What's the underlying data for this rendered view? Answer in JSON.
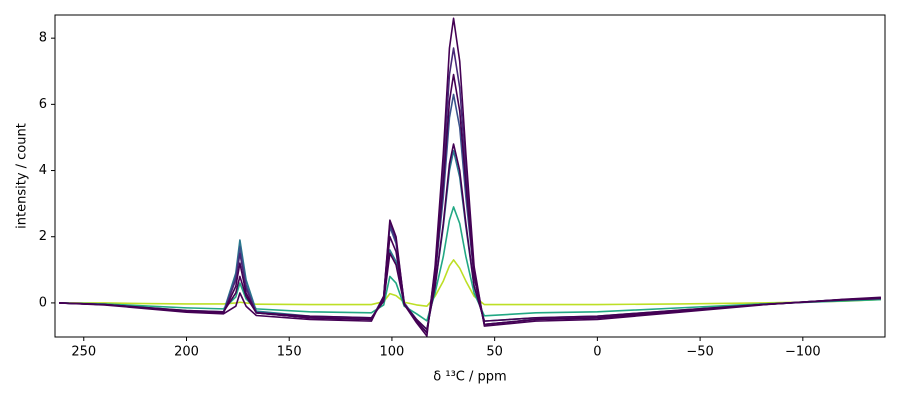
{
  "chart_data": {
    "type": "line",
    "xlabel": "δ ¹³C / ppm",
    "ylabel": "intensity / count",
    "x": [
      262,
      240,
      220,
      200,
      182,
      176,
      174,
      171,
      166,
      140,
      110,
      104,
      101,
      98,
      94,
      88,
      83,
      79,
      75,
      72,
      70,
      67,
      64,
      60,
      55,
      30,
      0,
      -40,
      -80,
      -120,
      -138
    ],
    "series": [
      {
        "color": "#bddf26",
        "values": [
          0,
          0,
          -0.02,
          -0.03,
          -0.03,
          0,
          0.02,
          0,
          -0.04,
          -0.05,
          -0.05,
          0.04,
          0.28,
          0.22,
          0.02,
          -0.06,
          -0.1,
          0.2,
          0.66,
          1.12,
          1.3,
          1.05,
          0.66,
          0.2,
          -0.05,
          -0.05,
          -0.05,
          -0.03,
          0,
          0.05,
          0.1
        ]
      },
      {
        "color": "#22a884",
        "values": [
          0,
          -0.03,
          -0.09,
          -0.15,
          -0.18,
          0.18,
          0.6,
          0.12,
          -0.18,
          -0.27,
          -0.3,
          -0.06,
          0.8,
          0.6,
          -0.1,
          -0.33,
          -0.54,
          0.3,
          1.4,
          2.5,
          2.9,
          2.4,
          1.4,
          0.3,
          -0.39,
          -0.3,
          -0.27,
          -0.15,
          -0.03,
          0.06,
          0.1
        ]
      },
      {
        "color": "#2a788e",
        "values": [
          0,
          -0.05,
          -0.14,
          -0.23,
          -0.27,
          0.9,
          1.9,
          0.7,
          -0.25,
          -0.4,
          -0.45,
          0.1,
          1.6,
          1.25,
          0,
          -0.5,
          -0.8,
          0.5,
          2.3,
          4.0,
          4.6,
          3.8,
          2.3,
          0.5,
          -0.55,
          -0.45,
          -0.4,
          -0.22,
          -0.05,
          0.09,
          0.13
        ]
      },
      {
        "color": "#3b528b",
        "values": [
          0,
          -0.05,
          -0.15,
          -0.25,
          -0.3,
          0.8,
          1.7,
          0.55,
          -0.3,
          -0.45,
          -0.5,
          0.2,
          2.3,
          1.8,
          0,
          -0.55,
          -0.9,
          0.8,
          3.2,
          5.6,
          6.3,
          5.3,
          3.2,
          0.8,
          -0.65,
          -0.5,
          -0.45,
          -0.25,
          -0.05,
          0.1,
          0.15
        ]
      },
      {
        "color": "#482878",
        "values": [
          0,
          -0.05,
          -0.15,
          -0.25,
          -0.3,
          0.7,
          1.5,
          0.45,
          -0.3,
          -0.45,
          -0.5,
          0.2,
          2.4,
          1.9,
          0,
          -0.55,
          -0.9,
          1.0,
          4.0,
          6.9,
          7.7,
          6.5,
          4.0,
          1.0,
          -0.65,
          -0.5,
          -0.45,
          -0.25,
          -0.05,
          0.1,
          0.15
        ]
      },
      {
        "color": "#440154",
        "values": [
          0,
          -0.05,
          -0.14,
          -0.23,
          -0.27,
          0.3,
          0.8,
          0.2,
          -0.3,
          -0.4,
          -0.45,
          0.05,
          1.5,
          1.15,
          -0.05,
          -0.5,
          -0.8,
          0.5,
          2.4,
          4.2,
          4.8,
          4.0,
          2.4,
          0.5,
          -0.55,
          -0.45,
          -0.4,
          -0.22,
          -0.05,
          0.09,
          0.13
        ]
      },
      {
        "color": "#440154",
        "values": [
          0,
          -0.05,
          -0.15,
          -0.25,
          -0.3,
          0.5,
          1.2,
          0.3,
          -0.3,
          -0.45,
          -0.5,
          0.15,
          2.0,
          1.55,
          -0.05,
          -0.55,
          -0.9,
          0.8,
          3.6,
          6.1,
          6.9,
          5.8,
          3.6,
          0.8,
          -0.65,
          -0.5,
          -0.45,
          -0.25,
          -0.05,
          0.1,
          0.15
        ]
      },
      {
        "color": "#440154",
        "values": [
          0,
          -0.06,
          -0.17,
          -0.28,
          -0.33,
          -0.1,
          0.3,
          -0.1,
          -0.38,
          -0.5,
          -0.55,
          0.2,
          2.5,
          2.0,
          -0.05,
          -0.6,
          -1.0,
          1.1,
          4.5,
          7.7,
          8.6,
          7.3,
          4.5,
          1.1,
          -0.7,
          -0.55,
          -0.5,
          -0.28,
          -0.06,
          0.11,
          0.17
        ]
      }
    ],
    "xlim": [
      264,
      -140
    ],
    "ylim": [
      -1.03,
      8.7
    ],
    "xticks": [
      250,
      200,
      150,
      100,
      50,
      0,
      {
        "value": -50,
        "label": "−50"
      },
      {
        "value": -100,
        "label": "−100"
      }
    ],
    "yticks": [
      0,
      2,
      4,
      6,
      8
    ],
    "grid": false
  }
}
